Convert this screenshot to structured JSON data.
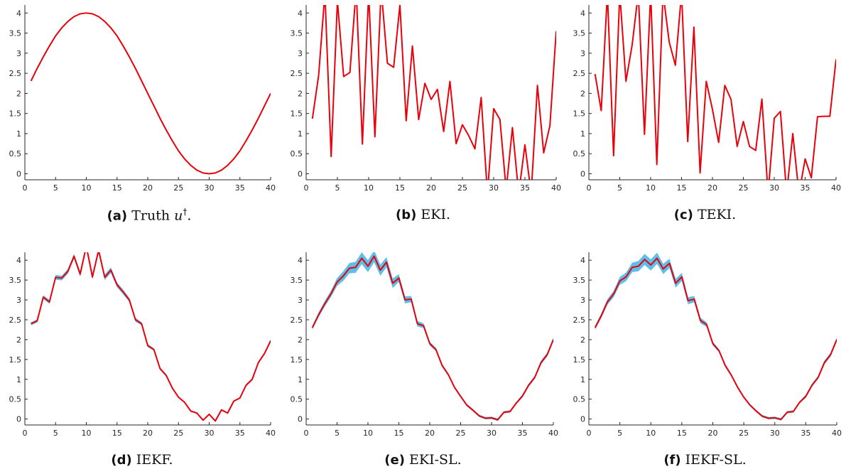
{
  "chart_data": [
    {
      "type": "line",
      "caption_tag": "(a)",
      "caption_text": "Truth",
      "caption_math": "u",
      "caption_sup": "†",
      "caption_end": ".",
      "x": [
        1,
        2,
        3,
        4,
        5,
        6,
        7,
        8,
        9,
        10,
        11,
        12,
        13,
        14,
        15,
        16,
        17,
        18,
        19,
        20,
        21,
        22,
        23,
        24,
        25,
        26,
        27,
        28,
        29,
        30,
        31,
        32,
        33,
        34,
        35,
        36,
        37,
        38,
        39,
        40
      ],
      "series": [
        {
          "color": "#e8000b",
          "values": [
            2.31,
            2.62,
            2.91,
            3.18,
            3.43,
            3.63,
            3.79,
            3.91,
            3.98,
            4.0,
            3.98,
            3.91,
            3.79,
            3.63,
            3.43,
            3.18,
            2.91,
            2.62,
            2.31,
            2.0,
            1.69,
            1.38,
            1.09,
            0.82,
            0.57,
            0.37,
            0.21,
            0.09,
            0.02,
            0.0,
            0.02,
            0.09,
            0.21,
            0.37,
            0.57,
            0.82,
            1.09,
            1.38,
            1.69,
            2.0
          ]
        }
      ],
      "xlim": [
        0,
        40
      ],
      "ylim": [
        -0.15,
        4.2
      ],
      "xticks": [
        0,
        5,
        10,
        15,
        20,
        25,
        30,
        35,
        40
      ],
      "yticks": [
        0,
        0.5,
        1,
        1.5,
        2,
        2.5,
        3,
        3.5,
        4
      ],
      "ytick_labels": [
        "0",
        "0.5",
        "1",
        "1.5",
        "2",
        "2.5",
        "3",
        "3.5",
        "4"
      ]
    },
    {
      "type": "line",
      "caption_tag": "(b)",
      "caption_text": "EKI.",
      "x": [
        1,
        2,
        3,
        4,
        5,
        6,
        7,
        8,
        9,
        10,
        11,
        12,
        13,
        14,
        15,
        16,
        17,
        18,
        19,
        20,
        21,
        22,
        23,
        24,
        25,
        26,
        27,
        28,
        29,
        30,
        31,
        32,
        33,
        34,
        35,
        36,
        37,
        38,
        39,
        40
      ],
      "series": [
        {
          "color": "#e8000b",
          "values": [
            1.37,
            2.45,
            4.5,
            0.43,
            4.3,
            2.42,
            2.52,
            4.6,
            0.74,
            4.5,
            0.92,
            4.6,
            2.75,
            2.65,
            4.2,
            1.32,
            3.18,
            1.35,
            2.25,
            1.85,
            2.1,
            1.05,
            2.3,
            0.75,
            1.22,
            0.95,
            0.62,
            1.9,
            -0.5,
            1.62,
            1.35,
            -0.4,
            1.15,
            -0.5,
            0.72,
            -0.5,
            2.2,
            0.52,
            1.2,
            3.55
          ]
        }
      ],
      "xlim": [
        0,
        40
      ],
      "ylim": [
        -0.15,
        4.2
      ],
      "xticks": [
        0,
        5,
        10,
        15,
        20,
        25,
        30,
        35,
        40
      ],
      "yticks": [
        0,
        0.5,
        1,
        1.5,
        2,
        2.5,
        3,
        3.5,
        4
      ],
      "ytick_labels": [
        "0",
        "0.5",
        "1",
        "1.5",
        "2",
        "2.5",
        "3",
        "3.5",
        "4"
      ]
    },
    {
      "type": "line",
      "caption_tag": "(c)",
      "caption_text": "TEKI.",
      "x": [
        1,
        2,
        3,
        4,
        5,
        6,
        7,
        8,
        9,
        10,
        11,
        12,
        13,
        14,
        15,
        16,
        17,
        18,
        19,
        20,
        21,
        22,
        23,
        24,
        25,
        26,
        27,
        28,
        29,
        30,
        31,
        32,
        33,
        34,
        35,
        36,
        37,
        38,
        39,
        40
      ],
      "series": [
        {
          "color": "#e8000b",
          "values": [
            2.48,
            1.57,
            4.5,
            0.45,
            4.5,
            2.3,
            3.2,
            4.5,
            0.98,
            4.5,
            0.23,
            4.5,
            3.28,
            2.7,
            4.5,
            0.8,
            3.65,
            0.02,
            2.3,
            1.6,
            0.78,
            2.2,
            1.85,
            0.68,
            1.3,
            0.68,
            0.58,
            1.86,
            -0.5,
            1.38,
            1.55,
            -0.5,
            1.0,
            -0.5,
            0.37,
            -0.1,
            1.42,
            1.43,
            1.43,
            2.85
          ]
        }
      ],
      "xlim": [
        0,
        40
      ],
      "ylim": [
        -0.15,
        4.2
      ],
      "xticks": [
        0,
        5,
        10,
        15,
        20,
        25,
        30,
        35,
        40
      ],
      "yticks": [
        0,
        0.5,
        1,
        1.5,
        2,
        2.5,
        3,
        3.5,
        4
      ],
      "ytick_labels": [
        "0",
        "0.5",
        "1",
        "1.5",
        "2",
        "2.5",
        "3",
        "3.5",
        "4"
      ]
    },
    {
      "type": "line",
      "caption_tag": "(d)",
      "caption_text": "IEKF.",
      "x": [
        1,
        2,
        3,
        4,
        5,
        6,
        7,
        8,
        9,
        10,
        11,
        12,
        13,
        14,
        15,
        16,
        17,
        18,
        19,
        20,
        21,
        22,
        23,
        24,
        25,
        26,
        27,
        28,
        29,
        30,
        31,
        32,
        33,
        34,
        35,
        36,
        37,
        38,
        39,
        40
      ],
      "series": [
        {
          "color": "#e8000b",
          "values": [
            2.4,
            2.47,
            3.07,
            2.95,
            3.57,
            3.55,
            3.72,
            4.1,
            3.65,
            4.35,
            3.58,
            4.25,
            3.57,
            3.75,
            3.38,
            3.2,
            3.0,
            2.5,
            2.4,
            1.85,
            1.75,
            1.27,
            1.1,
            0.78,
            0.55,
            0.42,
            0.2,
            0.15,
            -0.03,
            0.12,
            -0.05,
            0.23,
            0.15,
            0.45,
            0.53,
            0.85,
            1.0,
            1.42,
            1.65,
            1.97
          ]
        }
      ],
      "band_halfwidth": [
        0.04,
        0.04,
        0.05,
        0.05,
        0.06,
        0.06,
        0.06,
        0.06,
        0.07,
        0.07,
        0.07,
        0.07,
        0.07,
        0.07,
        0.06,
        0.06,
        0.05,
        0.05,
        0.04,
        0.04,
        0.03,
        0.03,
        0.03,
        0.03,
        0.02,
        0.02,
        0.02,
        0.02,
        0.02,
        0.02,
        0.02,
        0.02,
        0.02,
        0.02,
        0.02,
        0.03,
        0.03,
        0.03,
        0.03,
        0.04
      ],
      "band_color": "#5ec0e8",
      "xlim": [
        0,
        40
      ],
      "ylim": [
        -0.15,
        4.2
      ],
      "xticks": [
        0,
        5,
        10,
        15,
        20,
        25,
        30,
        35,
        40
      ],
      "yticks": [
        0,
        0.5,
        1,
        1.5,
        2,
        2.5,
        3,
        3.5,
        4
      ],
      "ytick_labels": [
        "0",
        "0.5",
        "1",
        "1.5",
        "2",
        "2.5",
        "3",
        "3.5",
        "4"
      ]
    },
    {
      "type": "line",
      "caption_tag": "(e)",
      "caption_text": "EKI-SL.",
      "x": [
        1,
        2,
        3,
        4,
        5,
        6,
        7,
        8,
        9,
        10,
        11,
        12,
        13,
        14,
        15,
        16,
        17,
        18,
        19,
        20,
        21,
        22,
        23,
        24,
        25,
        26,
        27,
        28,
        29,
        30,
        31,
        32,
        33,
        34,
        35,
        36,
        37,
        38,
        39,
        40
      ],
      "series": [
        {
          "color": "#e8000b",
          "values": [
            2.3,
            2.62,
            2.9,
            3.15,
            3.45,
            3.6,
            3.8,
            3.82,
            4.05,
            3.85,
            4.1,
            3.75,
            3.95,
            3.42,
            3.55,
            3.0,
            3.02,
            2.4,
            2.35,
            1.9,
            1.75,
            1.35,
            1.12,
            0.8,
            0.57,
            0.35,
            0.22,
            0.08,
            0.02,
            0.03,
            -0.02,
            0.17,
            0.19,
            0.4,
            0.58,
            0.85,
            1.05,
            1.42,
            1.62,
            2.0
          ]
        }
      ],
      "band_halfwidth": [
        0.05,
        0.06,
        0.07,
        0.08,
        0.1,
        0.12,
        0.13,
        0.14,
        0.15,
        0.15,
        0.15,
        0.14,
        0.13,
        0.12,
        0.1,
        0.09,
        0.08,
        0.07,
        0.06,
        0.05,
        0.04,
        0.04,
        0.03,
        0.03,
        0.03,
        0.03,
        0.03,
        0.03,
        0.03,
        0.03,
        0.03,
        0.03,
        0.03,
        0.03,
        0.04,
        0.04,
        0.04,
        0.05,
        0.05,
        0.05
      ],
      "band_color": "#5ec0e8",
      "xlim": [
        0,
        40
      ],
      "ylim": [
        -0.15,
        4.2
      ],
      "xticks": [
        0,
        5,
        10,
        15,
        20,
        25,
        30,
        35,
        40
      ],
      "yticks": [
        0,
        0.5,
        1,
        1.5,
        2,
        2.5,
        3,
        3.5,
        4
      ],
      "ytick_labels": [
        "0",
        "0.5",
        "1",
        "1.5",
        "2",
        "2.5",
        "3",
        "3.5",
        "4"
      ]
    },
    {
      "type": "line",
      "caption_tag": "(f)",
      "caption_text": "IEKF-SL.",
      "x": [
        1,
        2,
        3,
        4,
        5,
        6,
        7,
        8,
        9,
        10,
        11,
        12,
        13,
        14,
        15,
        16,
        17,
        18,
        19,
        20,
        21,
        22,
        23,
        24,
        25,
        26,
        27,
        28,
        29,
        30,
        31,
        32,
        33,
        34,
        35,
        36,
        37,
        38,
        39,
        40
      ],
      "series": [
        {
          "color": "#e8000b",
          "values": [
            2.3,
            2.6,
            2.95,
            3.15,
            3.48,
            3.58,
            3.82,
            3.85,
            4.02,
            3.88,
            4.05,
            3.78,
            3.92,
            3.42,
            3.58,
            2.98,
            3.02,
            2.48,
            2.38,
            1.9,
            1.72,
            1.35,
            1.1,
            0.8,
            0.55,
            0.35,
            0.2,
            0.07,
            0.02,
            0.03,
            -0.01,
            0.17,
            0.19,
            0.42,
            0.57,
            0.85,
            1.05,
            1.42,
            1.62,
            2.0
          ]
        }
      ],
      "band_halfwidth": [
        0.05,
        0.06,
        0.07,
        0.08,
        0.1,
        0.11,
        0.12,
        0.13,
        0.14,
        0.14,
        0.14,
        0.13,
        0.12,
        0.11,
        0.1,
        0.09,
        0.08,
        0.07,
        0.06,
        0.05,
        0.04,
        0.04,
        0.03,
        0.03,
        0.03,
        0.03,
        0.03,
        0.03,
        0.03,
        0.03,
        0.03,
        0.03,
        0.03,
        0.03,
        0.04,
        0.04,
        0.04,
        0.05,
        0.05,
        0.05
      ],
      "band_color": "#5ec0e8",
      "xlim": [
        0,
        40
      ],
      "ylim": [
        -0.15,
        4.2
      ],
      "xticks": [
        0,
        5,
        10,
        15,
        20,
        25,
        30,
        35,
        40
      ],
      "yticks": [
        0,
        0.5,
        1,
        1.5,
        2,
        2.5,
        3,
        3.5,
        4
      ],
      "ytick_labels": [
        "0",
        "0.5",
        "1",
        "1.5",
        "2",
        "2.5",
        "3",
        "3.5",
        "4"
      ]
    }
  ]
}
